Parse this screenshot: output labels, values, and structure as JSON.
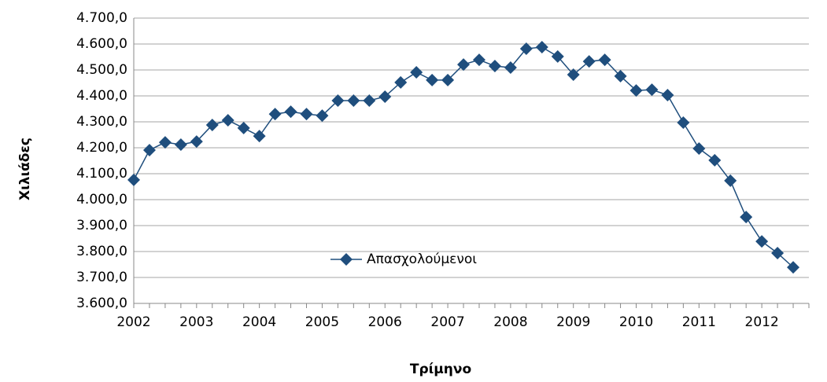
{
  "chart_data": {
    "type": "line",
    "x_label": "Τρίμηνο",
    "y_label": "Χιλιάδες",
    "categories": [
      "2002",
      null,
      null,
      null,
      "2003",
      null,
      null,
      null,
      "2004",
      null,
      null,
      null,
      "2005",
      null,
      null,
      null,
      "2006",
      null,
      null,
      null,
      "2007",
      null,
      null,
      null,
      "2008",
      null,
      null,
      null,
      "2009",
      null,
      null,
      null,
      "2010",
      null,
      null,
      null,
      "2011",
      null,
      null,
      null,
      "2012",
      null,
      null,
      null
    ],
    "series": [
      {
        "name": "Απασχολούμενοι",
        "color": "#1f4e7d",
        "values": [
          4076,
          4191,
          4221,
          4212,
          4224,
          4288,
          4306,
          4276,
          4245,
          4330,
          4339,
          4330,
          4324,
          4382,
          4382,
          4382,
          4397,
          4452,
          4491,
          4461,
          4461,
          4521,
          4539,
          4515,
          4509,
          4582,
          4588,
          4552,
          4482,
          4533,
          4539,
          4476,
          4421,
          4424,
          4403,
          4297,
          4197,
          4152,
          4073,
          3933,
          3839,
          3794,
          3739,
          null
        ]
      }
    ],
    "ylim": [
      3600,
      4700
    ],
    "yticks": [
      {
        "value": 3600,
        "label": "3.600,0"
      },
      {
        "value": 3700,
        "label": "3.700,0"
      },
      {
        "value": 3800,
        "label": "3.800,0"
      },
      {
        "value": 3900,
        "label": "3.900,0"
      },
      {
        "value": 4000,
        "label": "4.000,0"
      },
      {
        "value": 4100,
        "label": "4.100,0"
      },
      {
        "value": 4200,
        "label": "4.200,0"
      },
      {
        "value": 4300,
        "label": "4.300,0"
      },
      {
        "value": 4400,
        "label": "4.400,0"
      },
      {
        "value": 4500,
        "label": "4.500,0"
      },
      {
        "value": 4600,
        "label": "4.600,0"
      },
      {
        "value": 4700,
        "label": "4.700,0"
      }
    ],
    "grid": true
  }
}
